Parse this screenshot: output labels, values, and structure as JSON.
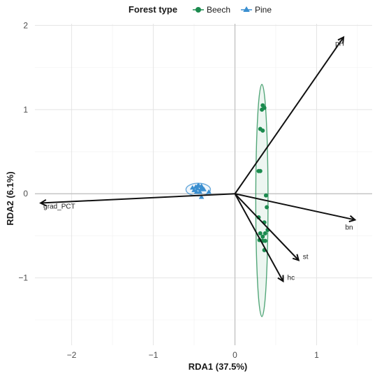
{
  "chart_data": {
    "type": "scatter",
    "xlabel": "RDA1 (37.5%)",
    "ylabel": "RDA2 (6.1%)",
    "xlim": [
      -2.45,
      1.68
    ],
    "ylim": [
      -1.8,
      2.02
    ],
    "x_ticks": [
      -2,
      -1,
      0,
      1
    ],
    "y_ticks": [
      -1,
      0,
      1,
      2
    ],
    "grid": true,
    "reference_lines": {
      "x": 0,
      "y": 0
    },
    "legend": {
      "title": "Forest type",
      "placement": "top",
      "entries": [
        {
          "label": "Beech",
          "color": "#1b8a4e",
          "shape": "circle"
        },
        {
          "label": "Pine",
          "color": "#3a8fd0",
          "shape": "triangle"
        }
      ]
    },
    "series": [
      {
        "name": "Beech",
        "color": "#1b8a4e",
        "shape": "circle",
        "points": [
          [
            0.34,
            1.05
          ],
          [
            0.33,
            1.0
          ],
          [
            0.36,
            1.02
          ],
          [
            0.31,
            0.77
          ],
          [
            0.34,
            0.75
          ],
          [
            0.29,
            0.27
          ],
          [
            0.31,
            0.27
          ],
          [
            0.38,
            -0.02
          ],
          [
            0.39,
            -0.16
          ],
          [
            0.29,
            -0.28
          ],
          [
            0.36,
            -0.34
          ],
          [
            0.4,
            -0.43
          ],
          [
            0.31,
            -0.47
          ],
          [
            0.37,
            -0.47
          ],
          [
            0.34,
            -0.51
          ],
          [
            0.3,
            -0.55
          ],
          [
            0.34,
            -0.56
          ],
          [
            0.37,
            -0.56
          ],
          [
            0.36,
            -0.67
          ]
        ],
        "ellipse": {
          "center": [
            0.33,
            -0.08
          ],
          "radius_x": 0.075,
          "radius_y": 1.38
        }
      },
      {
        "name": "Pine",
        "color": "#3a8fd0",
        "shape": "triangle",
        "points": [
          [
            -0.52,
            0.07
          ],
          [
            -0.5,
            0.04
          ],
          [
            -0.48,
            0.08
          ],
          [
            -0.46,
            0.06
          ],
          [
            -0.44,
            0.09
          ],
          [
            -0.42,
            0.05
          ],
          [
            -0.47,
            0.02
          ],
          [
            -0.43,
            0.02
          ],
          [
            -0.4,
            0.06
          ],
          [
            -0.45,
            0.1
          ],
          [
            -0.41,
            0.09
          ],
          [
            -0.38,
            0.05
          ],
          [
            -0.32,
            0.02
          ],
          [
            -0.41,
            -0.04
          ]
        ],
        "ellipse": {
          "center": [
            -0.45,
            0.05
          ],
          "radius_x": 0.15,
          "radius_y": 0.075
        }
      }
    ],
    "arrows": [
      {
        "label": "pH",
        "x": 1.33,
        "y": 1.86
      },
      {
        "label": "bn",
        "x": 1.47,
        "y": -0.31
      },
      {
        "label": "st",
        "x": 0.78,
        "y": -0.79
      },
      {
        "label": "hc",
        "x": 0.59,
        "y": -1.04
      },
      {
        "label": "grad_PCT",
        "x": -2.38,
        "y": -0.11
      }
    ]
  }
}
